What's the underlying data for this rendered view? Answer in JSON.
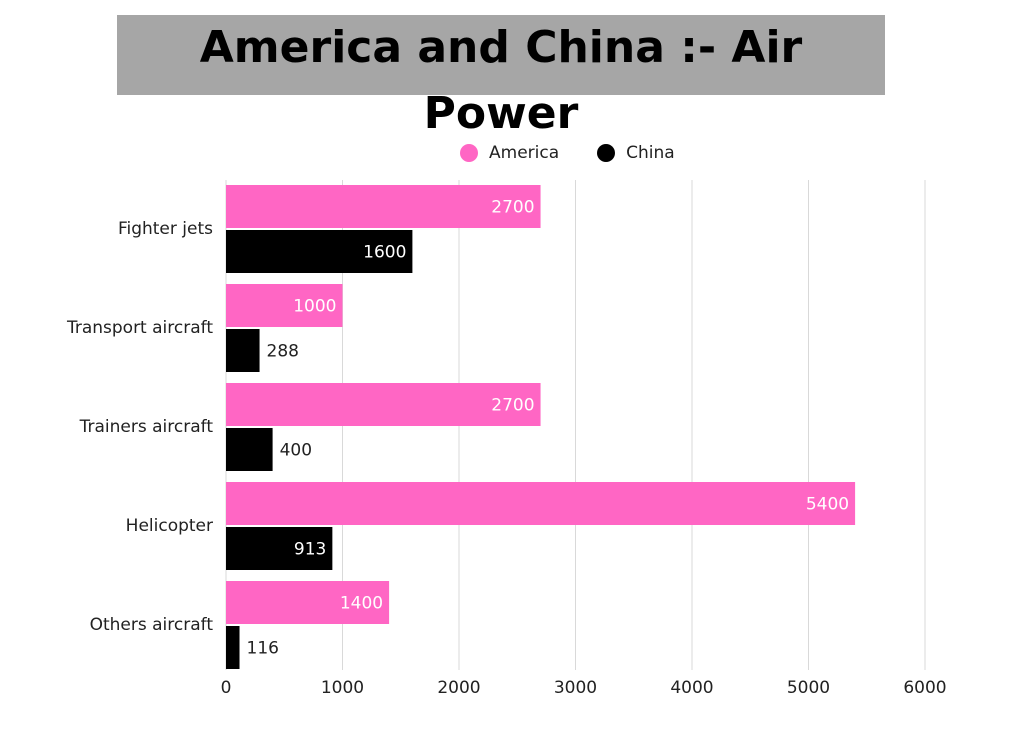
{
  "chart_data": {
    "type": "bar",
    "orientation": "horizontal",
    "title": "America and China :- Air Power",
    "categories": [
      "Fighter jets",
      "Transport aircraft",
      "Trainers aircraft",
      "Helicopter",
      "Others aircraft"
    ],
    "series": [
      {
        "name": "America",
        "color": "#ff66c4",
        "values": [
          2700,
          1000,
          2700,
          5400,
          1400
        ]
      },
      {
        "name": "China",
        "color": "#000000",
        "values": [
          1600,
          288,
          400,
          913,
          116
        ]
      }
    ],
    "xlim": [
      0,
      6000
    ],
    "xticks": [
      0,
      1000,
      2000,
      3000,
      4000,
      5000,
      6000
    ],
    "xlabel": "",
    "ylabel": "",
    "grid": true,
    "legend_position": "top"
  }
}
